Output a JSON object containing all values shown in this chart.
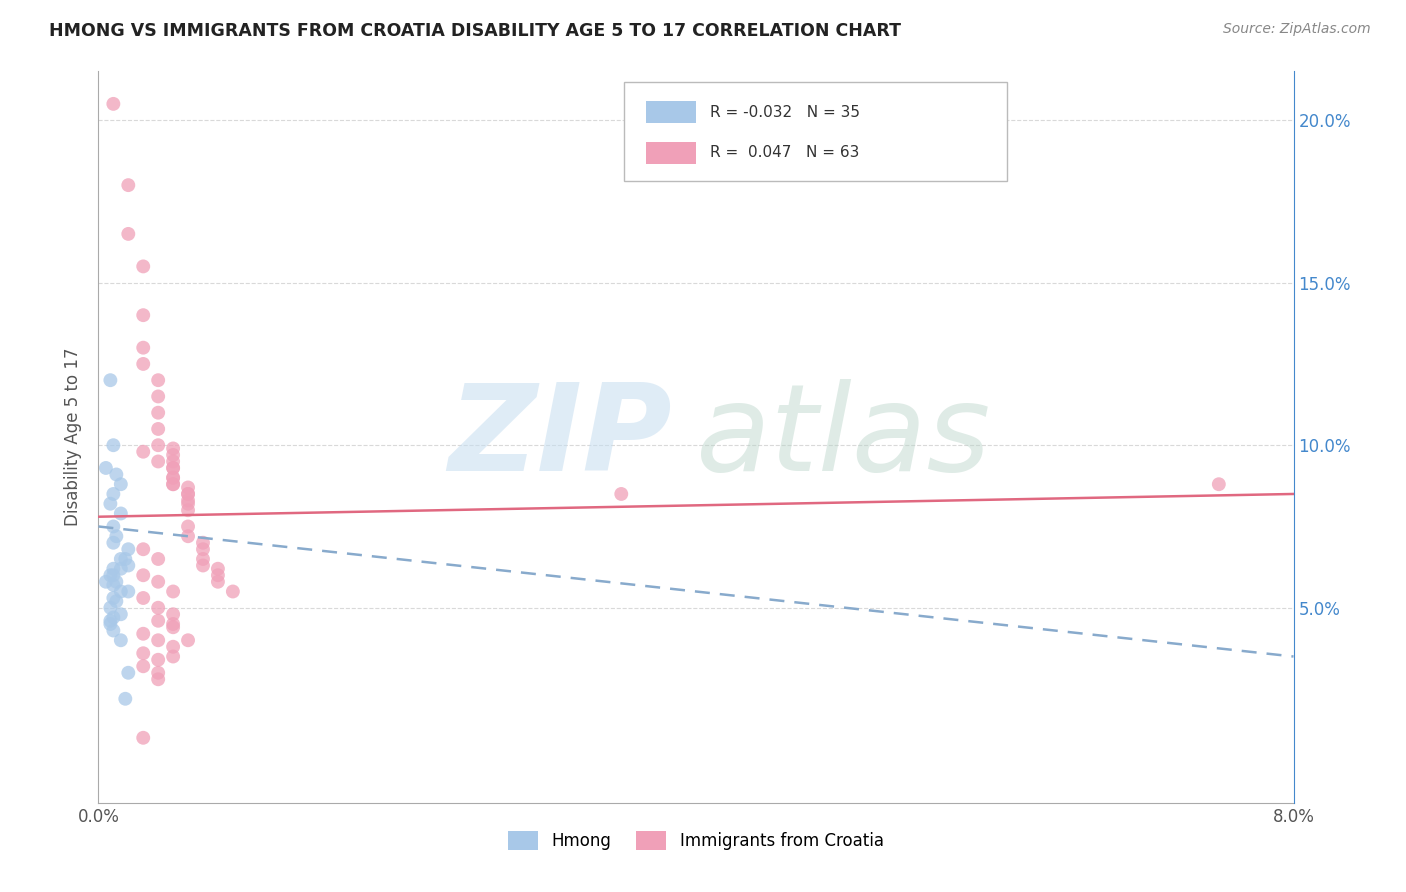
{
  "title": "HMONG VS IMMIGRANTS FROM CROATIA DISABILITY AGE 5 TO 17 CORRELATION CHART",
  "source": "Source: ZipAtlas.com",
  "ylabel": "Disability Age 5 to 17",
  "legend_label_blue": "Hmong",
  "legend_label_pink": "Immigrants from Croatia",
  "legend_r_blue": "R = -0.032",
  "legend_n_blue": "N = 35",
  "legend_r_pink": "R =  0.047",
  "legend_n_pink": "N = 63",
  "xlim": [
    0.0,
    0.08
  ],
  "ylim": [
    -0.01,
    0.215
  ],
  "background_color": "#ffffff",
  "grid_color": "#d0d0d0",
  "blue_color": "#a8c8e8",
  "pink_color": "#f0a0b8",
  "blue_line_color": "#88aacc",
  "pink_line_color": "#e06880",
  "hmong_x": [
    0.0008,
    0.001,
    0.0005,
    0.0012,
    0.0015,
    0.001,
    0.0008,
    0.0015,
    0.001,
    0.0012,
    0.002,
    0.0018,
    0.0015,
    0.001,
    0.0008,
    0.0005,
    0.001,
    0.0015,
    0.002,
    0.001,
    0.0012,
    0.0008,
    0.0015,
    0.001,
    0.0008,
    0.002,
    0.0015,
    0.001,
    0.0012,
    0.0008,
    0.001,
    0.0015,
    0.002,
    0.0018,
    0.001
  ],
  "hmong_y": [
    0.12,
    0.1,
    0.093,
    0.091,
    0.088,
    0.085,
    0.082,
    0.079,
    0.075,
    0.072,
    0.068,
    0.065,
    0.062,
    0.062,
    0.06,
    0.058,
    0.057,
    0.055,
    0.055,
    0.053,
    0.052,
    0.05,
    0.048,
    0.047,
    0.046,
    0.063,
    0.065,
    0.06,
    0.058,
    0.045,
    0.043,
    0.04,
    0.03,
    0.022,
    0.07
  ],
  "croatia_x": [
    0.001,
    0.002,
    0.002,
    0.003,
    0.003,
    0.003,
    0.003,
    0.004,
    0.004,
    0.004,
    0.004,
    0.004,
    0.005,
    0.005,
    0.005,
    0.005,
    0.005,
    0.005,
    0.006,
    0.006,
    0.006,
    0.006,
    0.006,
    0.006,
    0.007,
    0.007,
    0.007,
    0.007,
    0.008,
    0.008,
    0.008,
    0.009,
    0.003,
    0.004,
    0.005,
    0.005,
    0.005,
    0.006,
    0.006,
    0.003,
    0.004,
    0.005,
    0.003,
    0.004,
    0.005,
    0.004,
    0.005,
    0.003,
    0.004,
    0.005,
    0.003,
    0.004,
    0.003,
    0.004,
    0.035,
    0.003,
    0.004,
    0.005,
    0.006,
    0.005,
    0.004,
    0.075,
    0.003
  ],
  "croatia_y": [
    0.205,
    0.18,
    0.165,
    0.155,
    0.14,
    0.13,
    0.125,
    0.12,
    0.115,
    0.11,
    0.105,
    0.1,
    0.099,
    0.097,
    0.095,
    0.093,
    0.09,
    0.088,
    0.087,
    0.085,
    0.083,
    0.08,
    0.075,
    0.072,
    0.07,
    0.068,
    0.065,
    0.063,
    0.062,
    0.06,
    0.058,
    0.055,
    0.098,
    0.095,
    0.093,
    0.09,
    0.088,
    0.085,
    0.082,
    0.06,
    0.058,
    0.055,
    0.053,
    0.05,
    0.048,
    0.046,
    0.044,
    0.042,
    0.04,
    0.038,
    0.036,
    0.034,
    0.032,
    0.03,
    0.085,
    0.068,
    0.065,
    0.045,
    0.04,
    0.035,
    0.028,
    0.088,
    0.01
  ]
}
